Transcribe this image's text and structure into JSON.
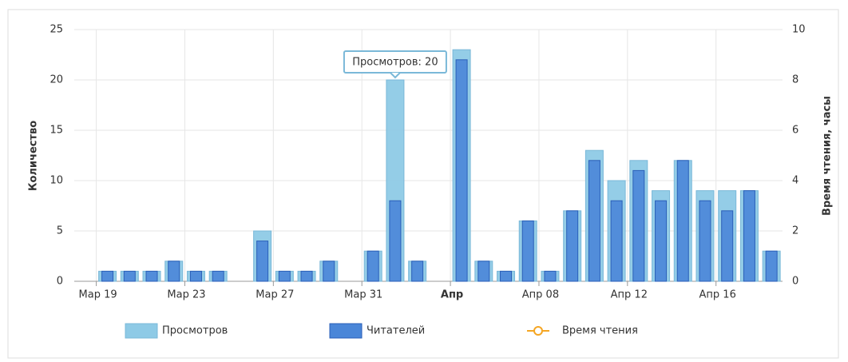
{
  "chart_data": {
    "type": "bar",
    "categories": [
      null,
      "Мар 19",
      null,
      null,
      null,
      "Мар 23",
      null,
      null,
      null,
      "Мар 27",
      null,
      null,
      null,
      "Мар 31",
      null,
      null,
      null,
      "Апр",
      null,
      null,
      null,
      "Апр 08",
      null,
      null,
      null,
      "Апр 12",
      null,
      null,
      null,
      "Апр 16",
      null,
      null
    ],
    "series": [
      {
        "name": "Просмотров",
        "color": "#8ecae6",
        "values": [
          0,
          1,
          1,
          1,
          2,
          1,
          1,
          0,
          5,
          1,
          1,
          2,
          0,
          3,
          20,
          2,
          0,
          23,
          2,
          1,
          6,
          1,
          7,
          13,
          10,
          12,
          9,
          12,
          9,
          9,
          9,
          3
        ]
      },
      {
        "name": "Читателей",
        "color": "#4a86d8",
        "values": [
          0,
          1,
          1,
          1,
          2,
          1,
          1,
          0,
          4,
          1,
          1,
          2,
          0,
          3,
          8,
          2,
          0,
          22,
          2,
          1,
          6,
          1,
          7,
          12,
          8,
          11,
          8,
          12,
          8,
          7,
          9,
          3
        ]
      },
      {
        "name": "Время чтения",
        "color": "#f5a623",
        "axis": "y2",
        "type": "line",
        "values": [
          null,
          null,
          null,
          null,
          null,
          null,
          null,
          null,
          null,
          null,
          null,
          null,
          null,
          null,
          null,
          null,
          null,
          null,
          null,
          null,
          null,
          null,
          null,
          null,
          null,
          null,
          null,
          null,
          null,
          null,
          null,
          null
        ]
      }
    ],
    "ylabel": "Количество",
    "y2label": "Время чтения, часы",
    "ylim": [
      0,
      25
    ],
    "yticks": [
      0,
      5,
      10,
      15,
      20,
      25
    ],
    "y2lim": [
      0,
      10
    ],
    "y2ticks": [
      0,
      2,
      4,
      6,
      8,
      10
    ],
    "grid": true,
    "legend": "bottom",
    "tooltip": {
      "text": "Просмотров: 20",
      "index": 14
    }
  }
}
